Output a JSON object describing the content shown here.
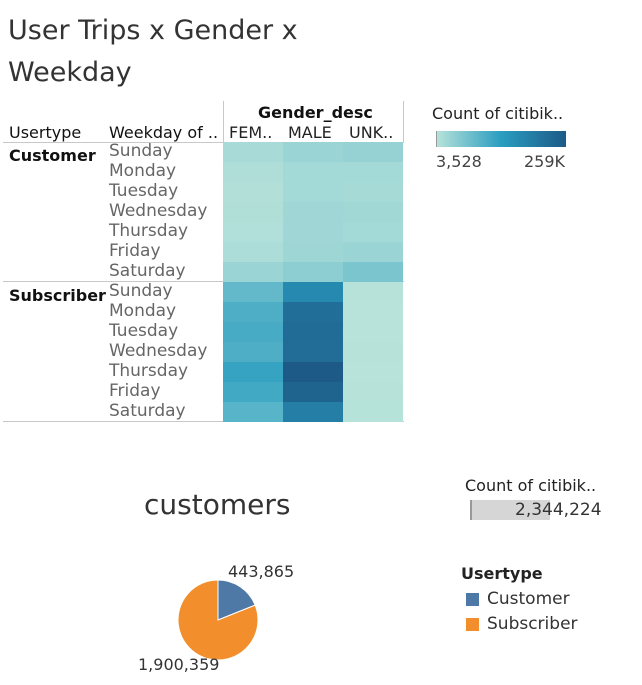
{
  "title": "User Trips x Gender x Weekday",
  "colors": {
    "customer": "#4e79a7",
    "subscriber": "#f28e2b"
  },
  "chart_data": [
    {
      "type": "heatmap",
      "title": "User Trips x Gender x Weekday",
      "column_group_label": "Gender_desc",
      "row_header_labels": [
        "Usertype",
        "Weekday of .."
      ],
      "columns": [
        "FEM..",
        "MALE",
        "UNK.."
      ],
      "row_groups": [
        {
          "name": "Customer",
          "rows": [
            "Sunday",
            "Monday",
            "Tuesday",
            "Wednesday",
            "Thursday",
            "Friday",
            "Saturday"
          ]
        },
        {
          "name": "Subscriber",
          "rows": [
            "Sunday",
            "Monday",
            "Tuesday",
            "Wednesday",
            "Thursday",
            "Friday",
            "Saturday"
          ]
        }
      ],
      "values": [
        [
          18000,
          30000,
          34000
        ],
        [
          12000,
          22000,
          22000
        ],
        [
          9000,
          22000,
          20000
        ],
        [
          11000,
          25000,
          24000
        ],
        [
          10000,
          25000,
          22000
        ],
        [
          14000,
          28000,
          30000
        ],
        [
          30000,
          42000,
          58000
        ],
        [
          80000,
          170000,
          5000
        ],
        [
          100000,
          220000,
          4000
        ],
        [
          105000,
          225000,
          4000
        ],
        [
          100000,
          222000,
          5000
        ],
        [
          120000,
          259000,
          3528
        ],
        [
          110000,
          240000,
          4500
        ],
        [
          90000,
          190000,
          6000
        ]
      ],
      "color_legend": {
        "title": "Count of citibik..",
        "min_label": "3,528",
        "max_label": "259K",
        "min": 3528,
        "max": 259000
      }
    },
    {
      "type": "pie",
      "title": "customers",
      "categories": [
        "Customer",
        "Subscriber"
      ],
      "values": [
        443865,
        1900359
      ],
      "value_labels": [
        "443,865",
        "1,900,359"
      ],
      "legend": {
        "title": "Usertype",
        "placement": "right"
      },
      "total_card": {
        "title": "Count of citibik..",
        "value": "2,344,224"
      }
    }
  ]
}
